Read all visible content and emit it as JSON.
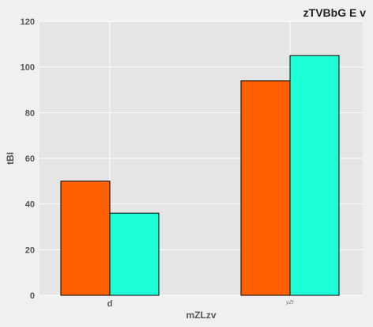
{
  "chart_data": {
    "type": "bar",
    "title": "zTVBbG E v",
    "xlabel": "mZLzv",
    "ylabel": "tBI",
    "categories": [
      "d",
      "yZr"
    ],
    "series": [
      {
        "values": [
          50,
          94
        ],
        "color": "#ff6000"
      },
      {
        "values": [
          36,
          105
        ],
        "color": "#1fffd8"
      }
    ],
    "ylim": [
      0,
      120
    ],
    "yticks": [
      0,
      20,
      40,
      60,
      80,
      100,
      120
    ],
    "grid": true,
    "plot_background": "#e5e5e5",
    "grid_color": "#ffffff"
  }
}
